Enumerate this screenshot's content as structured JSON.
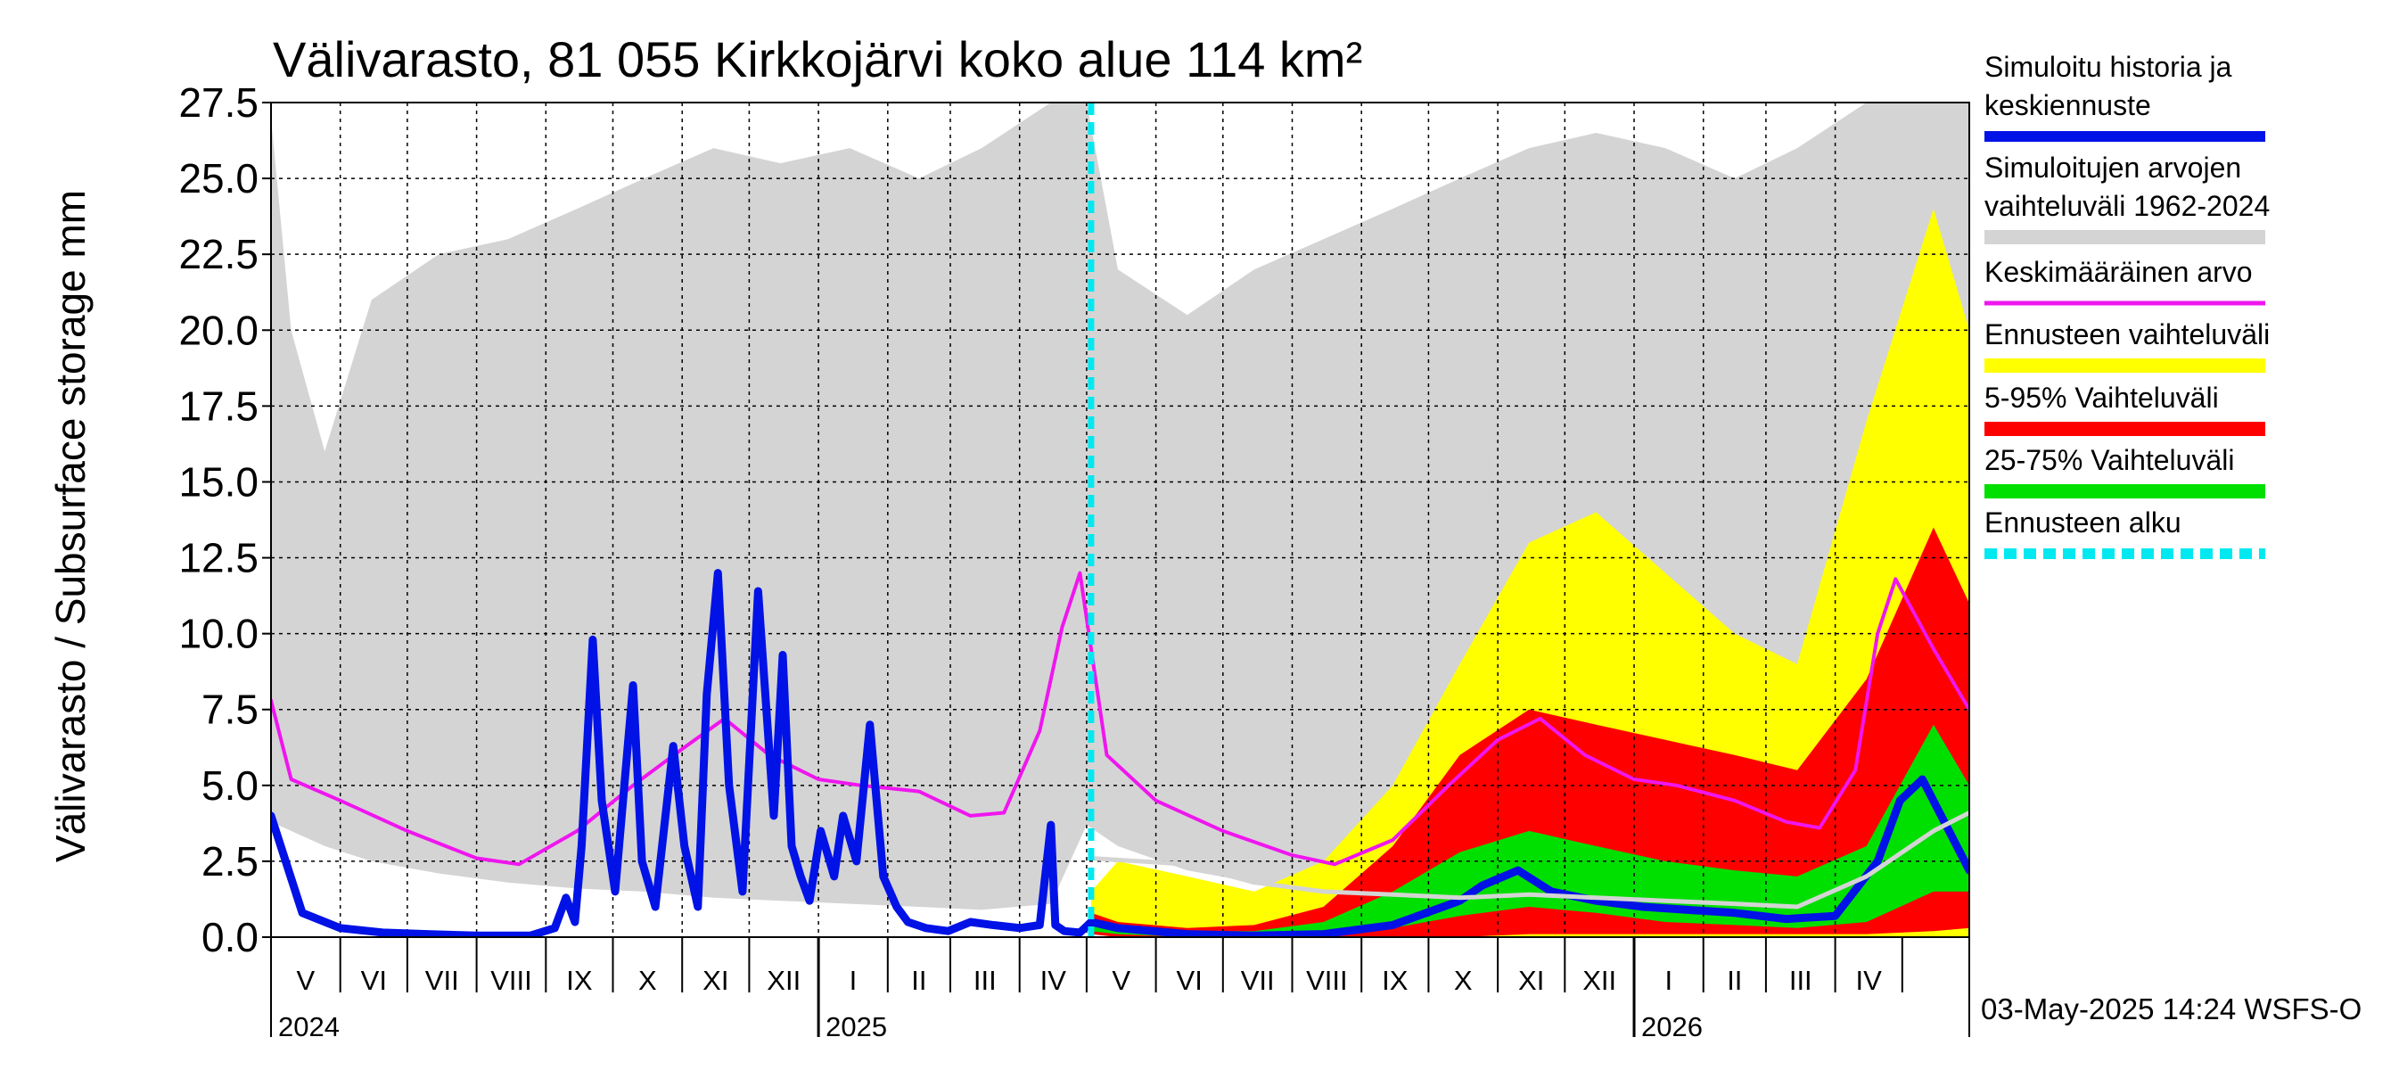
{
  "colors": {
    "historyRange": "#d4d4d4",
    "simulated": "#0012e6",
    "mean": "#ef16ef",
    "forecastRange": "#ffff00",
    "p5_95": "#ff0000",
    "p25_75": "#00e000",
    "forecastStart": "#00e8f0",
    "median": "#d4d4d4"
  },
  "chart_data": {
    "type": "area",
    "title": "Välivarasto, 81 055 Kirkkojärvi koko alue 114 km²",
    "ylabel": "Välivarasto / Subsurface storage  mm",
    "ylim": [
      0,
      27.5
    ],
    "yticks": [
      "0.0",
      "2.5",
      "5.0",
      "7.5",
      "10.0",
      "12.5",
      "15.0",
      "17.5",
      "20.0",
      "22.5",
      "25.0",
      "27.5"
    ],
    "xlim": [
      "2024-05-01",
      "2026-05-31"
    ],
    "forecast_start": "2025-05-03",
    "months": [
      "V",
      "VI",
      "VII",
      "VIII",
      "IX",
      "X",
      "XI",
      "XII",
      "I",
      "II",
      "III",
      "IV",
      "V",
      "VI",
      "VII",
      "VIII",
      "IX",
      "X",
      "XI",
      "XII",
      "I",
      "II",
      "III",
      "IV"
    ],
    "years": [
      "2024",
      "2025",
      "2026"
    ],
    "grid": true,
    "legend_position": "right",
    "legend": [
      {
        "label": "Simuloitu historia ja keskiennuste",
        "color": "#0012e6",
        "style": "solid"
      },
      {
        "label": "Simuloitujen arvojen vaihteluväli 1962-2024",
        "color": "#d4d4d4",
        "style": "band"
      },
      {
        "label": "Keskimääräinen arvo",
        "color": "#ef16ef",
        "style": "line"
      },
      {
        "label": "Ennusteen vaihteluväli",
        "color": "#ffff00",
        "style": "band"
      },
      {
        "label": "5-95% Vaihteluväli",
        "color": "#ff0000",
        "style": "band"
      },
      {
        "label": "25-75% Vaihteluväli",
        "color": "#00e000",
        "style": "band"
      },
      {
        "label": "Ennusteen alku",
        "color": "#00e8f0",
        "style": "dashed"
      }
    ],
    "series": [
      {
        "name": "Simuloitujen arvojen vaihteluväli 1962-2024",
        "kind": "band",
        "x": [
          "2024-05-01",
          "2024-05-10",
          "2024-05-25",
          "2024-06-15",
          "2024-07-15",
          "2024-08-15",
          "2024-09-15",
          "2024-10-15",
          "2024-11-15",
          "2024-12-15",
          "2025-01-15",
          "2025-02-15",
          "2025-03-15",
          "2025-04-15",
          "2025-05-01",
          "2025-05-15",
          "2025-06-15",
          "2025-07-15",
          "2025-08-15",
          "2025-09-15",
          "2025-10-15",
          "2025-11-15",
          "2025-12-15",
          "2026-01-15",
          "2026-02-15",
          "2026-03-15",
          "2026-04-15",
          "2026-05-15",
          "2026-05-31"
        ],
        "low": [
          3.8,
          3.5,
          3.0,
          2.5,
          2.1,
          1.8,
          1.6,
          1.5,
          1.3,
          1.2,
          1.1,
          1.0,
          0.9,
          1.1,
          3.7,
          3.0,
          2.2,
          1.8,
          1.6,
          1.5,
          1.4,
          1.3,
          1.2,
          1.1,
          1.0,
          0.9,
          1.1,
          2.5,
          3.0
        ],
        "high": [
          27.0,
          20.0,
          16.0,
          21.0,
          22.5,
          23.0,
          24.0,
          25.0,
          26.0,
          25.5,
          26.0,
          25.0,
          26.0,
          27.5,
          27.5,
          22.0,
          20.5,
          22.0,
          23.0,
          24.0,
          25.0,
          26.0,
          26.5,
          26.0,
          25.0,
          26.0,
          27.5,
          27.5,
          27.5
        ]
      },
      {
        "name": "Ennusteen vaihteluväli",
        "kind": "band",
        "x": [
          "2025-05-03",
          "2025-05-15",
          "2025-06-15",
          "2025-07-15",
          "2025-08-15",
          "2025-09-15",
          "2025-10-15",
          "2025-11-15",
          "2025-12-15",
          "2026-01-15",
          "2026-02-15",
          "2026-03-15",
          "2026-04-15",
          "2026-05-15",
          "2026-05-31"
        ],
        "low": [
          0.1,
          0.0,
          0.0,
          0.0,
          0.0,
          0.0,
          0.0,
          0.0,
          0.0,
          0.0,
          0.0,
          0.0,
          0.0,
          0.0,
          0.0
        ],
        "high": [
          1.5,
          2.5,
          2.0,
          1.5,
          2.5,
          5.0,
          9.0,
          13.0,
          14.0,
          12.0,
          10.0,
          9.0,
          17.0,
          24.0,
          20.0
        ]
      },
      {
        "name": "5-95% Vaihteluväli",
        "kind": "band",
        "x": [
          "2025-05-03",
          "2025-05-15",
          "2025-06-15",
          "2025-07-15",
          "2025-08-15",
          "2025-09-15",
          "2025-10-15",
          "2025-11-15",
          "2025-12-15",
          "2026-01-15",
          "2026-02-15",
          "2026-03-15",
          "2026-04-15",
          "2026-05-15",
          "2026-05-31"
        ],
        "low": [
          0.1,
          0.0,
          0.0,
          0.0,
          0.0,
          0.0,
          0.0,
          0.1,
          0.1,
          0.1,
          0.1,
          0.1,
          0.1,
          0.2,
          0.3
        ],
        "high": [
          0.8,
          0.5,
          0.3,
          0.4,
          1.0,
          3.0,
          6.0,
          7.5,
          7.0,
          6.5,
          6.0,
          5.5,
          8.5,
          13.5,
          11.0
        ]
      },
      {
        "name": "25-75% Vaihteluväli",
        "kind": "band",
        "x": [
          "2025-05-03",
          "2025-05-15",
          "2025-06-15",
          "2025-07-15",
          "2025-08-15",
          "2025-09-15",
          "2025-10-15",
          "2025-11-15",
          "2025-12-15",
          "2026-01-15",
          "2026-02-15",
          "2026-03-15",
          "2026-04-15",
          "2026-05-15",
          "2026-05-31"
        ],
        "low": [
          0.2,
          0.1,
          0.0,
          0.0,
          0.1,
          0.3,
          0.7,
          1.0,
          0.8,
          0.5,
          0.4,
          0.3,
          0.5,
          1.5,
          1.5
        ],
        "high": [
          0.5,
          0.3,
          0.2,
          0.2,
          0.5,
          1.5,
          2.8,
          3.5,
          3.0,
          2.5,
          2.2,
          2.0,
          3.0,
          7.0,
          5.0
        ]
      },
      {
        "name": "Keskimääräinen arvo",
        "kind": "line",
        "x": [
          "2024-05-01",
          "2024-05-10",
          "2024-06-01",
          "2024-07-01",
          "2024-08-01",
          "2024-08-20",
          "2024-09-15",
          "2024-10-10",
          "2024-11-01",
          "2024-11-20",
          "2024-12-10",
          "2025-01-01",
          "2025-01-20",
          "2025-02-15",
          "2025-03-10",
          "2025-03-25",
          "2025-04-10",
          "2025-04-20",
          "2025-04-28",
          "2025-05-10",
          "2025-06-01",
          "2025-07-01",
          "2025-08-01",
          "2025-08-20",
          "2025-09-15",
          "2025-10-10",
          "2025-11-01",
          "2025-11-20",
          "2025-12-10",
          "2026-01-01",
          "2026-01-20",
          "2026-02-15",
          "2026-03-10",
          "2026-03-25",
          "2026-04-10",
          "2026-04-20",
          "2026-04-28",
          "2026-05-15",
          "2026-05-31"
        ],
        "y": [
          7.8,
          5.2,
          4.5,
          3.5,
          2.6,
          2.4,
          3.5,
          5.0,
          6.2,
          7.2,
          6.0,
          5.2,
          5.0,
          4.8,
          4.0,
          4.1,
          6.8,
          10.2,
          12.0,
          6.0,
          4.5,
          3.5,
          2.7,
          2.4,
          3.2,
          5.0,
          6.5,
          7.2,
          6.0,
          5.2,
          5.0,
          4.5,
          3.8,
          3.6,
          5.5,
          10.0,
          11.8,
          9.5,
          7.5
        ]
      },
      {
        "name": "Simuloitu historia ja keskiennuste",
        "kind": "line",
        "x": [
          "2024-05-01",
          "2024-05-15",
          "2024-06-01",
          "2024-06-20",
          "2024-07-10",
          "2024-08-01",
          "2024-08-25",
          "2024-09-05",
          "2024-09-10",
          "2024-09-14",
          "2024-09-17",
          "2024-09-22",
          "2024-09-26",
          "2024-10-02",
          "2024-10-10",
          "2024-10-14",
          "2024-10-20",
          "2024-10-28",
          "2024-11-02",
          "2024-11-08",
          "2024-11-12",
          "2024-11-17",
          "2024-11-22",
          "2024-11-28",
          "2024-12-05",
          "2024-12-12",
          "2024-12-16",
          "2024-12-20",
          "2024-12-24",
          "2024-12-28",
          "2025-01-02",
          "2025-01-08",
          "2025-01-12",
          "2025-01-18",
          "2025-01-24",
          "2025-01-30",
          "2025-02-05",
          "2025-02-10",
          "2025-02-18",
          "2025-02-28",
          "2025-03-10",
          "2025-03-20",
          "2025-04-01",
          "2025-04-10",
          "2025-04-15",
          "2025-04-17",
          "2025-04-21",
          "2025-04-28",
          "2025-05-03",
          "2025-05-15",
          "2025-06-15",
          "2025-07-15",
          "2025-08-15",
          "2025-09-15",
          "2025-10-15",
          "2025-10-25",
          "2025-11-10",
          "2025-11-25",
          "2025-12-15",
          "2026-01-05",
          "2026-01-25",
          "2026-02-15",
          "2026-03-10",
          "2026-04-01",
          "2026-04-20",
          "2026-04-30",
          "2026-05-10",
          "2026-05-31"
        ],
        "y": [
          4.0,
          0.8,
          0.3,
          0.15,
          0.1,
          0.05,
          0.05,
          0.3,
          1.3,
          0.5,
          3.0,
          9.8,
          4.5,
          1.5,
          8.3,
          2.5,
          1.0,
          6.3,
          3.0,
          1.0,
          8.0,
          12.0,
          5.0,
          1.5,
          11.4,
          4.0,
          9.3,
          3.0,
          2.0,
          1.2,
          3.5,
          2.0,
          4.0,
          2.5,
          7.0,
          2.0,
          1.0,
          0.5,
          0.3,
          0.2,
          0.5,
          0.4,
          0.3,
          0.4,
          3.7,
          0.4,
          0.2,
          0.15,
          0.5,
          0.3,
          0.1,
          0.05,
          0.1,
          0.4,
          1.2,
          1.7,
          2.2,
          1.5,
          1.2,
          1.0,
          0.9,
          0.8,
          0.6,
          0.7,
          2.5,
          4.5,
          5.2,
          2.2
        ]
      },
      {
        "name": "median",
        "kind": "line",
        "x": [
          "2025-05-03",
          "2025-06-15",
          "2025-07-15",
          "2025-08-15",
          "2025-09-15",
          "2025-10-15",
          "2025-11-15",
          "2025-12-15",
          "2026-01-15",
          "2026-02-15",
          "2026-03-15",
          "2026-04-15",
          "2026-05-15",
          "2026-05-31"
        ],
        "y": [
          2.6,
          2.4,
          1.8,
          1.5,
          1.4,
          1.3,
          1.4,
          1.3,
          1.2,
          1.1,
          1.0,
          2.0,
          3.5,
          4.1
        ]
      }
    ]
  },
  "footer": {
    "timestamp": "03-May-2025 14:24 WSFS-O"
  }
}
